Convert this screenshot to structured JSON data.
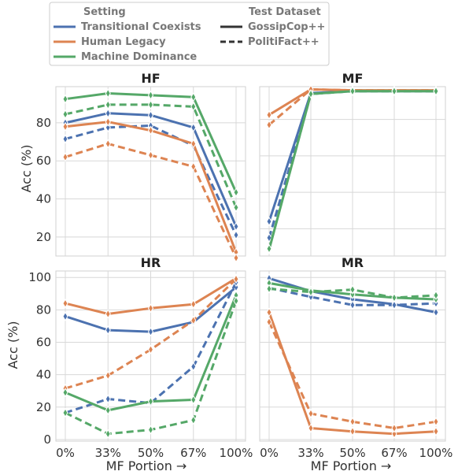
{
  "legend": {
    "setting_title": "Setting",
    "dataset_title": "Test Dataset",
    "settings": [
      {
        "label": "Transitional Coexists",
        "color": "#4c72b0"
      },
      {
        "label": "Human Legacy",
        "color": "#dd8452"
      },
      {
        "label": "Machine Dominance",
        "color": "#55a868"
      }
    ],
    "datasets": [
      {
        "label": "GossipCop++",
        "dash": "solid"
      },
      {
        "label": "PolitiFact++",
        "dash": "dashed"
      }
    ]
  },
  "axis_labels": {
    "y_top": "Acc (%)",
    "y_bottom": "Acc (%)",
    "x_left": "MF Portion →",
    "x_right": "MF Portion →"
  },
  "chart_data": [
    {
      "type": "line",
      "title": "HF",
      "categories": [
        "0%",
        "33%",
        "50%",
        "67%",
        "100%"
      ],
      "ylim": [
        10,
        99
      ],
      "yticks": [
        20,
        40,
        60,
        80
      ],
      "show_xticks": false,
      "show_yticks": true,
      "series": [
        {
          "setting": "Transitional Coexists",
          "dataset": "GossipCop++",
          "values": [
            80,
            85,
            84,
            77.5,
            25.5
          ]
        },
        {
          "setting": "Transitional Coexists",
          "dataset": "PolitiFact++",
          "values": [
            71.5,
            77.5,
            78.5,
            68,
            21
          ]
        },
        {
          "setting": "Human Legacy",
          "dataset": "GossipCop++",
          "values": [
            78,
            80.5,
            76,
            69,
            12
          ]
        },
        {
          "setting": "Human Legacy",
          "dataset": "PolitiFact++",
          "values": [
            62,
            69,
            63,
            57,
            9
          ]
        },
        {
          "setting": "Machine Dominance",
          "dataset": "GossipCop++",
          "values": [
            92.5,
            95.5,
            94.5,
            93.5,
            43.5
          ]
        },
        {
          "setting": "Machine Dominance",
          "dataset": "PolitiFact++",
          "values": [
            84.5,
            89.5,
            89.5,
            88.5,
            35.5
          ]
        }
      ]
    },
    {
      "type": "line",
      "title": "MF",
      "categories": [
        "0%",
        "33%",
        "50%",
        "67%",
        "100%"
      ],
      "ylim": [
        5,
        98
      ],
      "yticks": [
        20,
        40,
        60,
        80
      ],
      "show_xticks": false,
      "show_yticks": false,
      "series": [
        {
          "setting": "Transitional Coexists",
          "dataset": "GossipCop++",
          "values": [
            24,
            94.5,
            95.5,
            95.5,
            95.5
          ]
        },
        {
          "setting": "Transitional Coexists",
          "dataset": "PolitiFact++",
          "values": [
            15,
            94,
            95.5,
            95.5,
            95.5
          ]
        },
        {
          "setting": "Human Legacy",
          "dataset": "GossipCop++",
          "values": [
            82.5,
            96.5,
            96,
            96,
            96
          ]
        },
        {
          "setting": "Human Legacy",
          "dataset": "PolitiFact++",
          "values": [
            77,
            96.5,
            96,
            96,
            96
          ]
        },
        {
          "setting": "Machine Dominance",
          "dataset": "GossipCop++",
          "values": [
            8.5,
            94,
            95.5,
            95.5,
            95.5
          ]
        },
        {
          "setting": "Machine Dominance",
          "dataset": "PolitiFact++",
          "values": [
            9,
            94,
            95.5,
            95.5,
            95.5
          ]
        }
      ]
    },
    {
      "type": "line",
      "title": "HR",
      "categories": [
        "0%",
        "33%",
        "50%",
        "67%",
        "100%"
      ],
      "ylim": [
        -1,
        104
      ],
      "yticks": [
        0,
        20,
        40,
        60,
        80,
        100
      ],
      "show_xticks": true,
      "show_yticks": true,
      "series": [
        {
          "setting": "Transitional Coexists",
          "dataset": "GossipCop++",
          "values": [
            76,
            67.5,
            66.5,
            72.5,
            94
          ]
        },
        {
          "setting": "Transitional Coexists",
          "dataset": "PolitiFact++",
          "values": [
            16.5,
            25,
            22.5,
            45,
            97
          ]
        },
        {
          "setting": "Human Legacy",
          "dataset": "GossipCop++",
          "values": [
            84,
            77.5,
            81,
            83.5,
            99.5
          ]
        },
        {
          "setting": "Human Legacy",
          "dataset": "PolitiFact++",
          "values": [
            31.5,
            39.5,
            55.5,
            73.5,
            99
          ]
        },
        {
          "setting": "Machine Dominance",
          "dataset": "GossipCop++",
          "values": [
            29,
            18,
            23.5,
            24.5,
            89
          ]
        },
        {
          "setting": "Machine Dominance",
          "dataset": "PolitiFact++",
          "values": [
            16.5,
            3.5,
            6,
            12,
            85.5
          ]
        }
      ]
    },
    {
      "type": "line",
      "title": "MR",
      "categories": [
        "0%",
        "33%",
        "50%",
        "67%",
        "100%"
      ],
      "ylim": [
        -1,
        104
      ],
      "yticks": [
        0,
        20,
        40,
        60,
        80,
        100
      ],
      "show_xticks": true,
      "show_yticks": false,
      "series": [
        {
          "setting": "Transitional Coexists",
          "dataset": "GossipCop++",
          "values": [
            99.5,
            91.5,
            86.5,
            83.5,
            78.5
          ]
        },
        {
          "setting": "Transitional Coexists",
          "dataset": "PolitiFact++",
          "values": [
            93.5,
            88,
            83,
            83,
            84
          ]
        },
        {
          "setting": "Human Legacy",
          "dataset": "GossipCop++",
          "values": [
            78.5,
            7,
            5,
            3.5,
            5
          ]
        },
        {
          "setting": "Human Legacy",
          "dataset": "PolitiFact++",
          "values": [
            72.5,
            16,
            11,
            7,
            11
          ]
        },
        {
          "setting": "Machine Dominance",
          "dataset": "GossipCop++",
          "values": [
            96.5,
            92,
            89.5,
            87.5,
            86.5
          ]
        },
        {
          "setting": "Machine Dominance",
          "dataset": "PolitiFact++",
          "values": [
            93,
            91,
            92.5,
            87.5,
            89
          ]
        }
      ]
    }
  ]
}
